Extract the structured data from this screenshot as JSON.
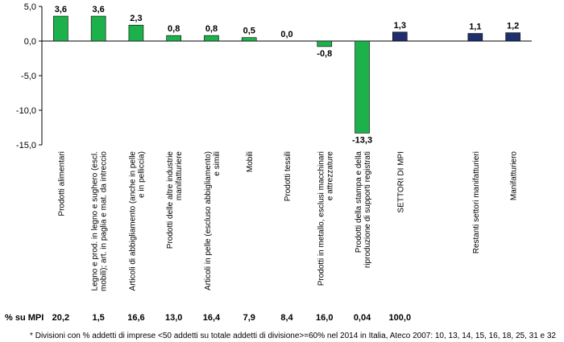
{
  "chart_data": {
    "type": "bar",
    "categories": [
      "Prodotti alimentari",
      "Legno e prod. in legno e sughero (escl. mobili); art. in paglia e mat. da intreccio",
      "Articoli di abbigliamento (anche in pelle e in pelliccia)",
      "Prodotti delle altre industrie manifatturiere",
      "Articoli in pelle (escluso abbigliamento) e simili",
      "Mobili",
      "Prodotti tessili",
      "Prodotti in metallo, esclusi macchinari e attrezzature",
      "Prodotti della stampa e della riproduzione di supporti registrati",
      "SETTORI DI MPI",
      "",
      "Restanti settori manifatturieri",
      "Manifatturiero"
    ],
    "category_lines": [
      [
        "Prodotti alimentari"
      ],
      [
        "Legno e prod. in legno e sughero (escl.",
        "mobili); art. in paglia e mat. da intreccio"
      ],
      [
        "Articoli di abbigliamento (anche in pelle",
        "e in pelliccia)"
      ],
      [
        "Prodotti delle altre industrie",
        "manifatturiere"
      ],
      [
        "Articoli in pelle (escluso abbigliamento)",
        "e simili"
      ],
      [
        "Mobili"
      ],
      [
        "Prodotti tessili"
      ],
      [
        "Prodotti in metallo, esclusi macchinari",
        "e attrezzature"
      ],
      [
        "Prodotti della stampa e della",
        "riproduzione di supporti registrati"
      ],
      [
        "SETTORI DI MPI"
      ],
      [],
      [
        "Restanti settori manifatturieri"
      ],
      [
        "Manifatturiero"
      ]
    ],
    "values": [
      3.6,
      3.6,
      2.3,
      0.8,
      0.8,
      0.5,
      0.0,
      -0.8,
      -13.3,
      1.3,
      null,
      1.1,
      1.2
    ],
    "value_labels": [
      "3,6",
      "3,6",
      "2,3",
      "0,8",
      "0,8",
      "0,5",
      "0,0",
      "-0,8",
      "-13,3",
      "1,3",
      "",
      "1,1",
      "1,2"
    ],
    "bar_colors": [
      "#1db14b",
      "#1db14b",
      "#1db14b",
      "#1db14b",
      "#1db14b",
      "#1db14b",
      "#1db14b",
      "#1db14b",
      "#1db14b",
      "#1f2f6e",
      "",
      "#1f2f6e",
      "#1f2f6e"
    ],
    "ylim": [
      -15,
      5
    ],
    "yticks": [
      5,
      0,
      -5,
      -10,
      -15
    ],
    "ytick_labels": [
      "5,0",
      "0,0",
      "-5,0",
      "-10,0",
      "-15,0"
    ],
    "share_label": "% su MPI",
    "share_values": [
      "20,2",
      "1,5",
      "16,6",
      "13,0",
      "16,4",
      "7,9",
      "8,4",
      "16,0",
      "0,04",
      "100,0",
      "",
      "",
      ""
    ],
    "footnote": "* Divisioni con % addetti di imprese <50 addetti su totale addetti di divisione>=60% nel 2014 in Italia, Ateco 2007: 10, 13, 14, 15, 16, 18, 25, 31 e 32"
  }
}
